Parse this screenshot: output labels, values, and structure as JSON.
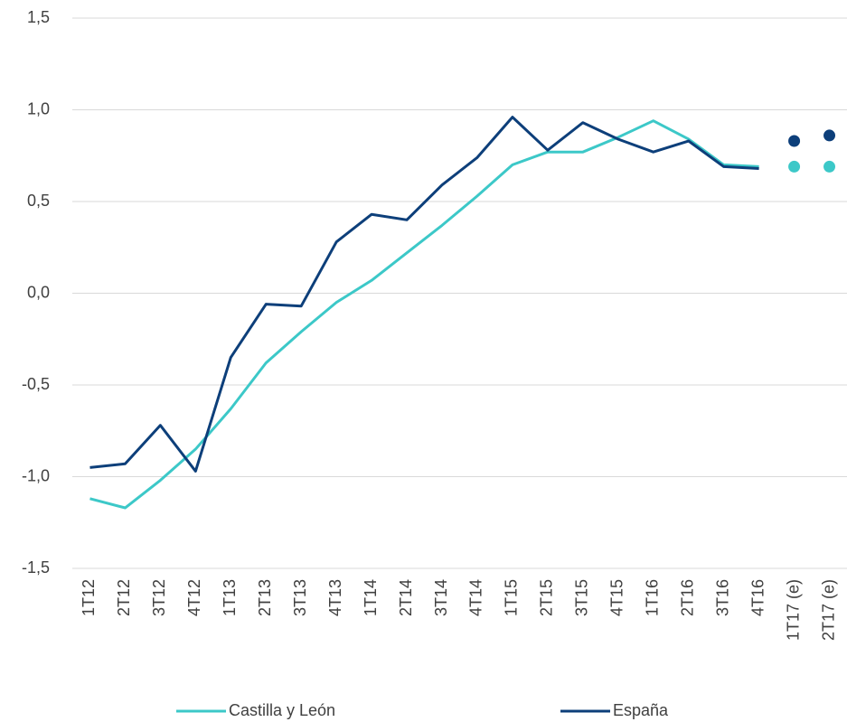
{
  "chart_data": {
    "type": "line",
    "categories": [
      "1T12",
      "2T12",
      "3T12",
      "4T12",
      "1T13",
      "2T13",
      "3T13",
      "4T13",
      "1T14",
      "2T14",
      "3T14",
      "4T14",
      "1T15",
      "2T15",
      "3T15",
      "4T15",
      "1T16",
      "2T16",
      "3T16",
      "4T16",
      "1T17 (e)",
      "2T17 (e)"
    ],
    "estimated": [
      false,
      false,
      false,
      false,
      false,
      false,
      false,
      false,
      false,
      false,
      false,
      false,
      false,
      false,
      false,
      false,
      false,
      false,
      false,
      false,
      true,
      true
    ],
    "series": [
      {
        "name": "Castilla y León",
        "color": "#3cc8c8",
        "values": [
          -1.12,
          -1.17,
          -1.02,
          -0.85,
          -0.63,
          -0.38,
          -0.21,
          -0.05,
          0.07,
          0.22,
          0.37,
          0.53,
          0.7,
          0.77,
          0.77,
          0.85,
          0.94,
          0.84,
          0.7,
          0.69,
          0.69,
          0.69
        ]
      },
      {
        "name": "España",
        "color": "#0d3f7a",
        "values": [
          -0.95,
          -0.93,
          -0.72,
          -0.97,
          -0.35,
          -0.06,
          -0.07,
          0.28,
          0.43,
          0.4,
          0.59,
          0.74,
          0.96,
          0.78,
          0.93,
          0.84,
          0.77,
          0.83,
          0.69,
          0.68,
          0.83,
          0.86
        ]
      }
    ],
    "ylim": [
      -1.5,
      1.5
    ],
    "yticks": [
      {
        "value": -1.5,
        "label": "-1,5"
      },
      {
        "value": -1.0,
        "label": "-1,0"
      },
      {
        "value": -0.5,
        "label": "-0,5"
      },
      {
        "value": 0,
        "label": "0,0"
      },
      {
        "value": 0.5,
        "label": "0,5"
      },
      {
        "value": 1.0,
        "label": "1,0"
      },
      {
        "value": 1.5,
        "label": "1,5"
      }
    ],
    "grid": true,
    "legend": "bottom"
  }
}
